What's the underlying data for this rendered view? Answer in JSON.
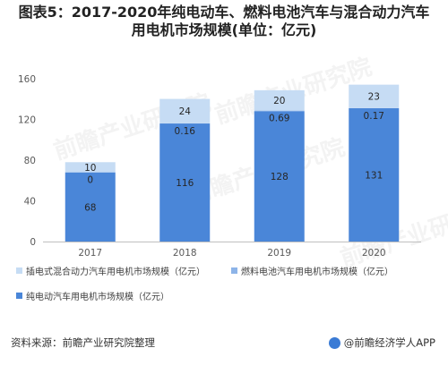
{
  "title": {
    "line1": "图表5：2017-2020年纯电动车、燃料电池汽车与混合动力汽车",
    "line2": "用电机市场规模(单位：亿元)"
  },
  "watermark": {
    "text": "前瞻产业研究院"
  },
  "chart_data": {
    "type": "bar",
    "stacked": true,
    "categories": [
      "2017",
      "2018",
      "2019",
      "2020"
    ],
    "series": [
      {
        "name": "纯电动汽车用电机市场规模（亿元）",
        "values": [
          68,
          116,
          128,
          131
        ],
        "labels": [
          "68",
          "116",
          "128",
          "131"
        ],
        "color": "#4a86d8"
      },
      {
        "name": "燃料电池汽车用电机市场规模（亿元）",
        "values": [
          0,
          0.16,
          0.69,
          0.17
        ],
        "labels": [
          "0",
          "0.16",
          "0.69",
          "0.17"
        ],
        "color": "#8db4e8"
      },
      {
        "name": "插电式混合动力汽车用电机市场规模（亿元）",
        "values": [
          10,
          24,
          20,
          23
        ],
        "labels": [
          "10",
          "24",
          "20",
          "23"
        ],
        "color": "#c6dcf4"
      }
    ],
    "ylim": [
      0,
      160
    ],
    "yticks": [
      0,
      40,
      80,
      120,
      160
    ],
    "grid": false,
    "legend_position": "bottom"
  },
  "legend": {
    "items": [
      {
        "label": "插电式混合动力汽车用电机市场规模（亿元）",
        "color": "#c6dcf4"
      },
      {
        "label": "燃料电池汽车用电机市场规模（亿元）",
        "color": "#8db4e8"
      },
      {
        "label": "纯电动汽车用电机市场规模（亿元）",
        "color": "#4a86d8"
      }
    ]
  },
  "footer": {
    "source": "资料来源：前瞻产业研究院整理",
    "brand": "@前瞻经济学人APP"
  }
}
